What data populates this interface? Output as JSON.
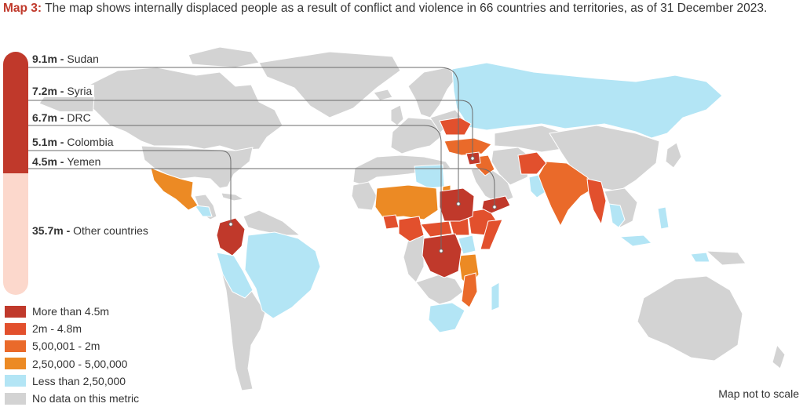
{
  "header": {
    "map_tag": "Map 3:",
    "title": "The map shows internally displaced people as a result of conflict and violence in 66 countries and territories, as of 31 December 2023."
  },
  "bar": {
    "items": [
      {
        "value": "9.1m",
        "sep": " - ",
        "label": "Sudan",
        "millions": 9.1,
        "color": "#c0392b"
      },
      {
        "value": "7.2m",
        "sep": " - ",
        "label": "Syria",
        "millions": 7.2,
        "color": "#c0392b"
      },
      {
        "value": "6.7m",
        "sep": " - ",
        "label": "DRC",
        "millions": 6.7,
        "color": "#c0392b"
      },
      {
        "value": "5.1m",
        "sep": " - ",
        "label": "Colombia",
        "millions": 5.1,
        "color": "#c0392b"
      },
      {
        "value": "4.5m",
        "sep": " - ",
        "label": "Yemen",
        "millions": 4.5,
        "color": "#c0392b"
      },
      {
        "value": "35.7m",
        "sep": " - ",
        "label": "Other countries",
        "millions": 35.7,
        "color": "#fcd8cc"
      }
    ]
  },
  "legend": {
    "items": [
      {
        "label": "More than 4.5m",
        "color": "#c0392b"
      },
      {
        "label": "2m - 4.8m",
        "color": "#e2502d"
      },
      {
        "label": "5,00,001 - 2m",
        "color": "#ea6a2a"
      },
      {
        "label": "2,50,000 - 5,00,000",
        "color": "#ec8a24"
      },
      {
        "label": "Less than 2,50,000",
        "color": "#b3e5f5"
      },
      {
        "label": "No data on this metric",
        "color": "#d3d3d3"
      }
    ]
  },
  "note": "Map not to scale",
  "colors": {
    "tier1": "#c0392b",
    "tier2": "#e2502d",
    "tier3": "#ea6a2a",
    "tier4": "#ec8a24",
    "tier5": "#b3e5f5",
    "nodata": "#d3d3d3",
    "connector": "#6b6b6b"
  }
}
